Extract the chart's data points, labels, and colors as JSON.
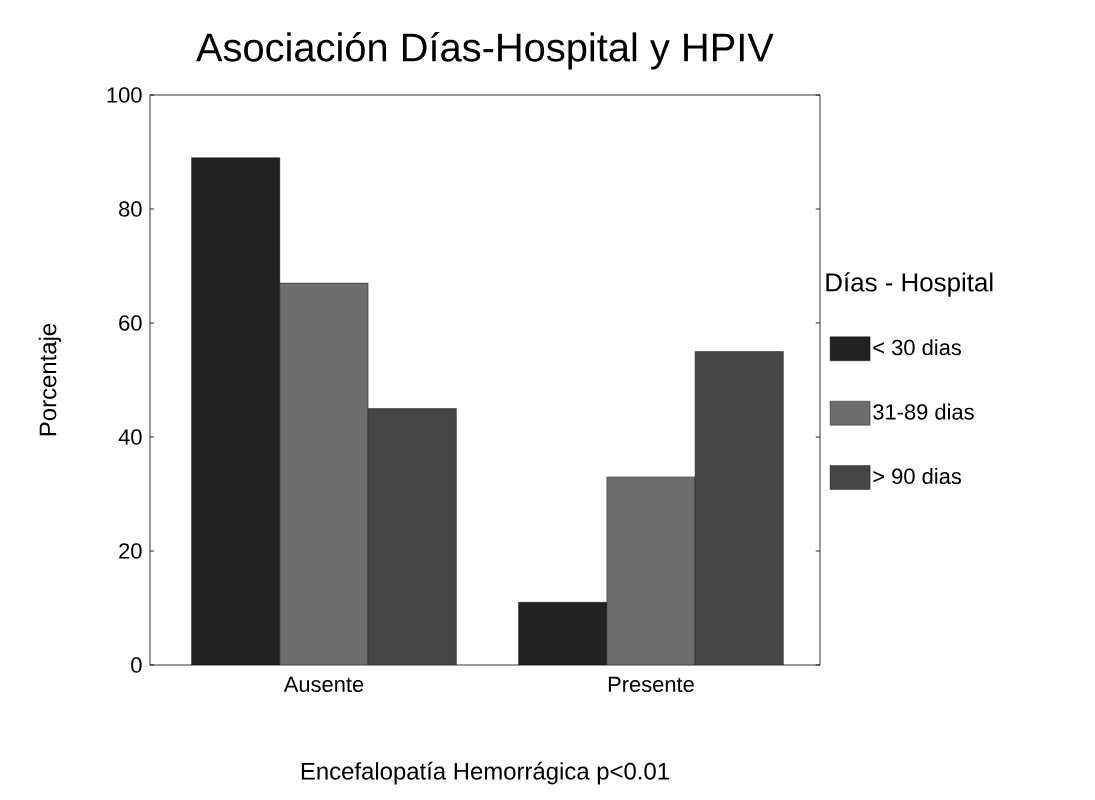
{
  "chart_data": {
    "type": "bar",
    "title": "Asociación Días-Hospital y HPIV",
    "xlabel": "Encefalopatía Hemorrágica p<0.01",
    "ylabel": "Porcentaje",
    "legend_title": "Días - Hospital",
    "categories": [
      "Ausente",
      "Presente"
    ],
    "series": [
      {
        "name": "< 30 dias",
        "color": "#222222",
        "values": [
          89,
          11
        ]
      },
      {
        "name": "31-89 dias",
        "color": "#6e6e6e",
        "values": [
          67,
          33
        ]
      },
      {
        "name": "> 90 dias",
        "color": "#454545",
        "values": [
          45,
          55
        ]
      }
    ],
    "ylim": [
      0,
      100
    ],
    "yticks": [
      0,
      20,
      40,
      60,
      80,
      100
    ],
    "grid": false,
    "legend": "right"
  }
}
